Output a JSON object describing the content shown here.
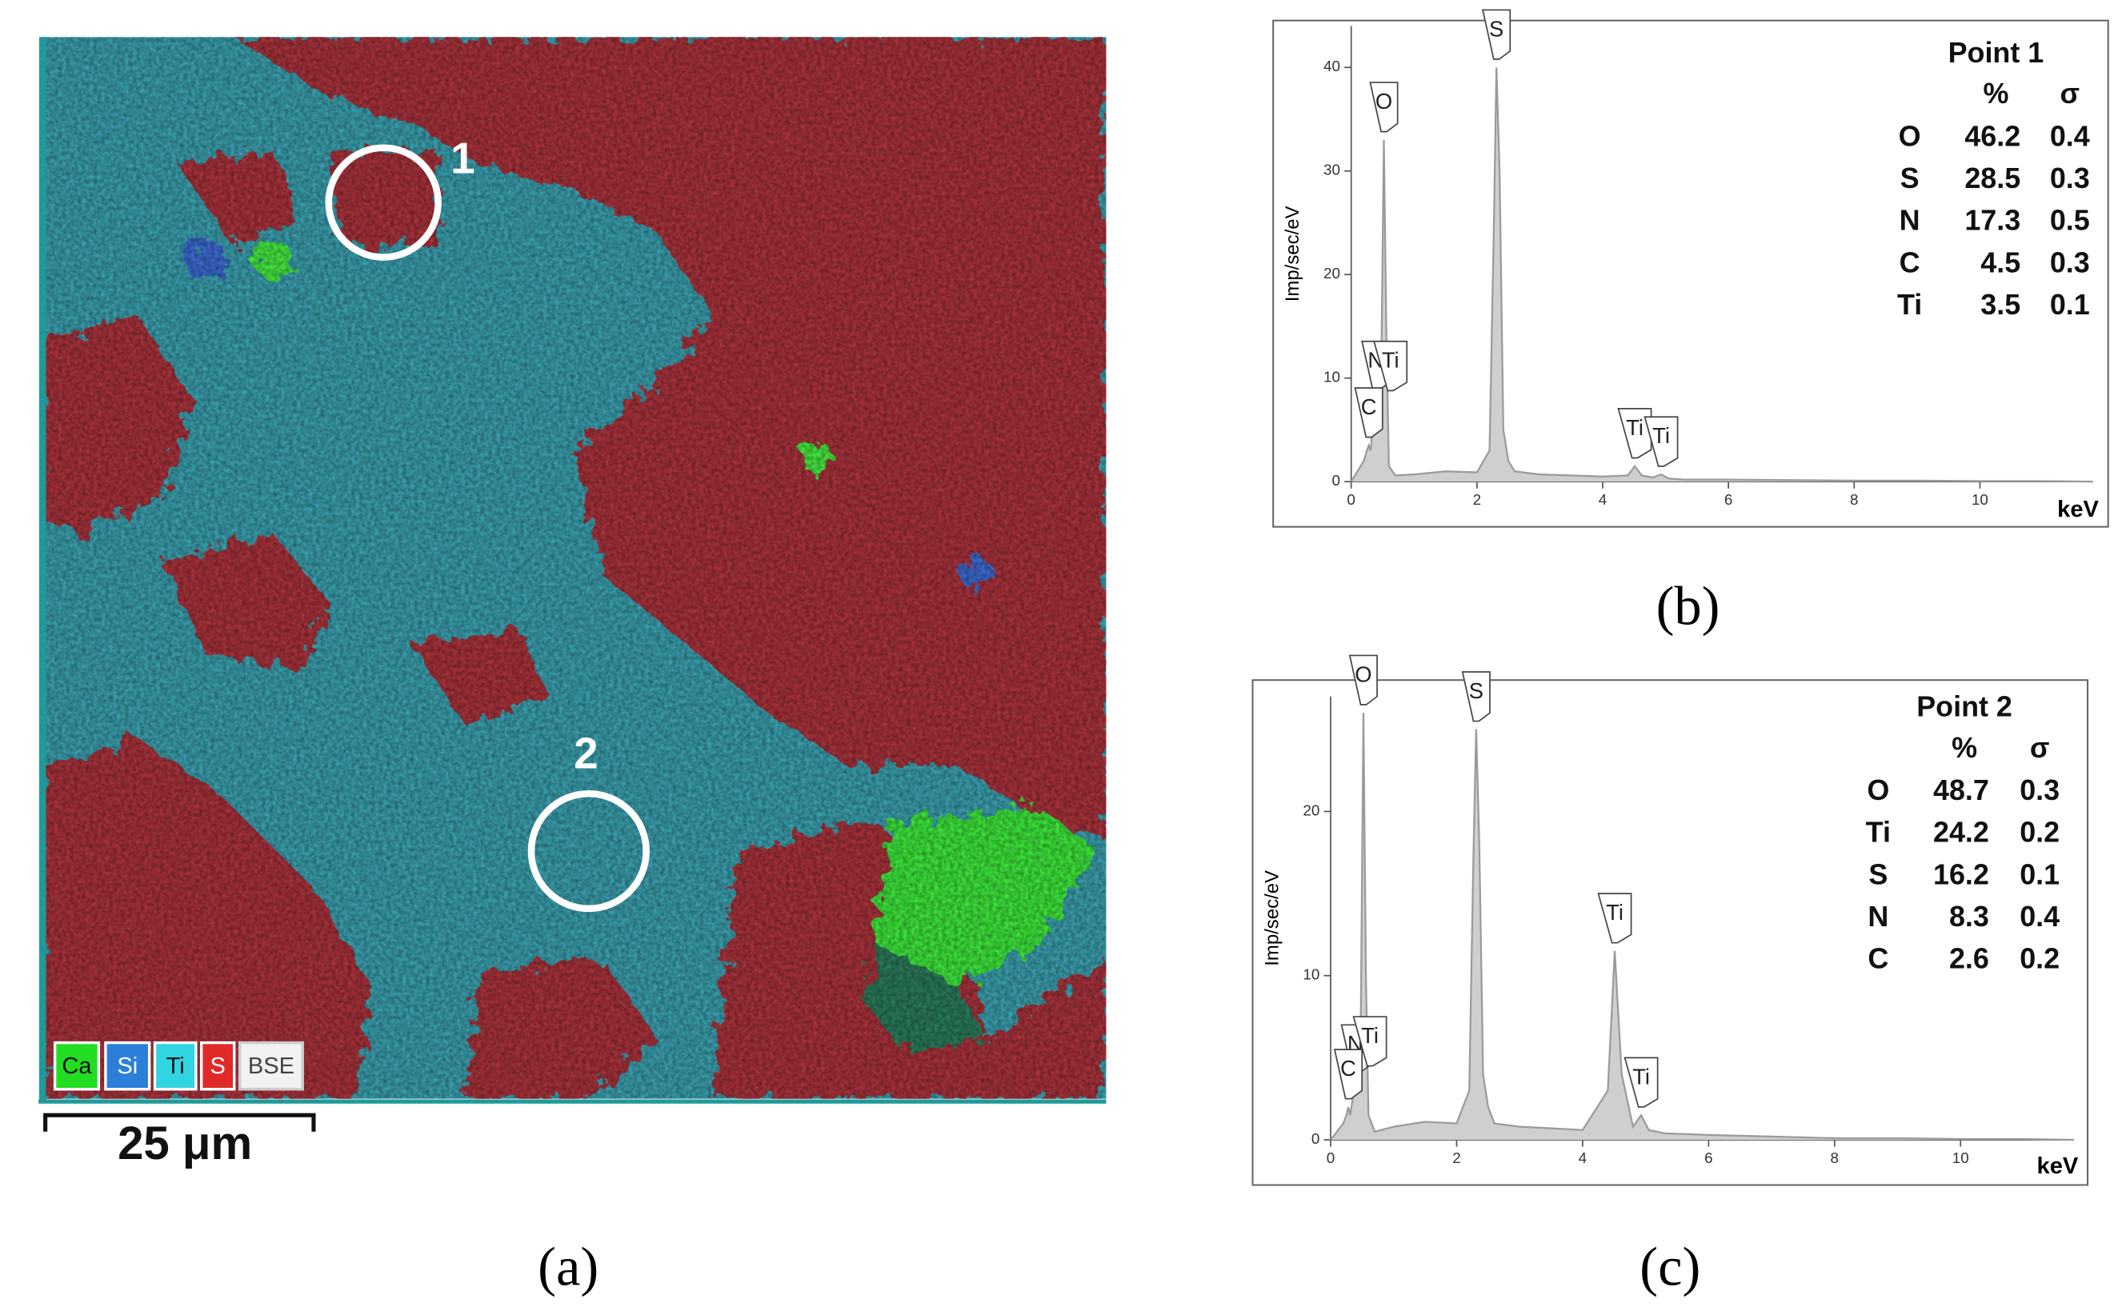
{
  "map": {
    "panel_label": "(a)",
    "points": [
      "1",
      "2"
    ],
    "legend": [
      "Ca",
      "Si",
      "Ti",
      "S",
      "BSE"
    ],
    "scale_bar": "25 μm"
  },
  "chart_data": [
    {
      "type": "line",
      "panel_label": "(b)",
      "ylabel": "Imp/sec/eV",
      "xlabel": "keV",
      "color": "#9a9a9a",
      "x": [
        0,
        0.1,
        0.2,
        0.25,
        0.28,
        0.31,
        0.35,
        0.39,
        0.42,
        0.45,
        0.48,
        0.52,
        0.56,
        0.6,
        0.7,
        1.0,
        1.5,
        2.0,
        2.2,
        2.27,
        2.31,
        2.36,
        2.42,
        2.5,
        2.6,
        3.0,
        3.5,
        4.0,
        4.4,
        4.51,
        4.62,
        4.8,
        4.93,
        5.05,
        5.3,
        6,
        7,
        8,
        9,
        10,
        11,
        12
      ],
      "values": [
        0,
        1,
        2,
        3,
        3.5,
        3,
        6,
        8,
        7,
        8,
        12,
        33,
        14,
        1.5,
        0.6,
        0.7,
        1,
        0.9,
        3,
        25,
        40,
        30,
        5,
        2,
        1,
        0.7,
        0.6,
        0.5,
        0.6,
        1.5,
        0.6,
        0.4,
        0.7,
        0.3,
        0.2,
        0.2,
        0.15,
        0.1,
        0.1,
        0.05,
        0.05,
        0
      ],
      "xlim": [
        0,
        11.8
      ],
      "ylim": [
        0,
        44
      ],
      "xticks": [
        0,
        2,
        4,
        6,
        8,
        10
      ],
      "yticks": [
        0,
        10,
        20,
        30,
        40
      ],
      "annotations": [
        {
          "text": "S",
          "x": 2.31,
          "y": 40
        },
        {
          "text": "O",
          "x": 0.52,
          "y": 33
        },
        {
          "text": "N",
          "x": 0.39,
          "y": 8
        },
        {
          "text": "Ti",
          "x": 0.45,
          "y": 8
        },
        {
          "text": "C",
          "x": 0.28,
          "y": 3.5
        },
        {
          "text": "Ti",
          "x": 4.51,
          "y": 1.5
        },
        {
          "text": "Ti",
          "x": 4.93,
          "y": 0.7
        }
      ],
      "table": {
        "title": "Point 1",
        "columns": [
          "%",
          "σ"
        ],
        "rows": [
          [
            "O",
            46.2,
            0.4
          ],
          [
            "S",
            28.5,
            0.3
          ],
          [
            "N",
            17.3,
            0.5
          ],
          [
            "C",
            4.5,
            0.3
          ],
          [
            "Ti",
            3.5,
            0.1
          ]
        ]
      }
    },
    {
      "type": "line",
      "panel_label": "(c)",
      "ylabel": "Imp/sec/eV",
      "xlabel": "keV",
      "color": "#9a9a9a",
      "x": [
        0,
        0.1,
        0.2,
        0.25,
        0.28,
        0.31,
        0.35,
        0.39,
        0.42,
        0.45,
        0.48,
        0.52,
        0.56,
        0.6,
        0.7,
        1.0,
        1.5,
        2.0,
        2.2,
        2.27,
        2.31,
        2.36,
        2.42,
        2.5,
        2.6,
        3.0,
        3.5,
        4.0,
        4.4,
        4.51,
        4.62,
        4.8,
        4.93,
        5.05,
        5.3,
        6,
        7,
        8,
        9,
        10,
        11,
        12
      ],
      "values": [
        0,
        0.5,
        1,
        1.5,
        2,
        1.5,
        2.5,
        3.5,
        3,
        4,
        8,
        26,
        10,
        1.5,
        0.5,
        0.8,
        1.1,
        1,
        3,
        18,
        25,
        18,
        4,
        2,
        1,
        0.8,
        0.7,
        0.6,
        3,
        11.5,
        4,
        0.8,
        1.5,
        0.6,
        0.4,
        0.3,
        0.2,
        0.1,
        0.1,
        0.05,
        0.05,
        0
      ],
      "xlim": [
        0,
        11.8
      ],
      "ylim": [
        0,
        27
      ],
      "xticks": [
        0,
        2,
        4,
        6,
        8,
        10
      ],
      "yticks": [
        0,
        10,
        20
      ],
      "annotations": [
        {
          "text": "O",
          "x": 0.52,
          "y": 26
        },
        {
          "text": "S",
          "x": 2.31,
          "y": 25
        },
        {
          "text": "N",
          "x": 0.39,
          "y": 3.5
        },
        {
          "text": "Ti",
          "x": 0.45,
          "y": 4
        },
        {
          "text": "C",
          "x": 0.28,
          "y": 2
        },
        {
          "text": "Ti",
          "x": 4.51,
          "y": 11.5
        },
        {
          "text": "Ti",
          "x": 4.93,
          "y": 1.5
        }
      ],
      "table": {
        "title": "Point 2",
        "columns": [
          "%",
          "σ"
        ],
        "rows": [
          [
            "O",
            48.7,
            0.3
          ],
          [
            "Ti",
            24.2,
            0.2
          ],
          [
            "S",
            16.2,
            0.1
          ],
          [
            "N",
            8.3,
            0.4
          ],
          [
            "C",
            2.6,
            0.2
          ]
        ]
      }
    }
  ]
}
